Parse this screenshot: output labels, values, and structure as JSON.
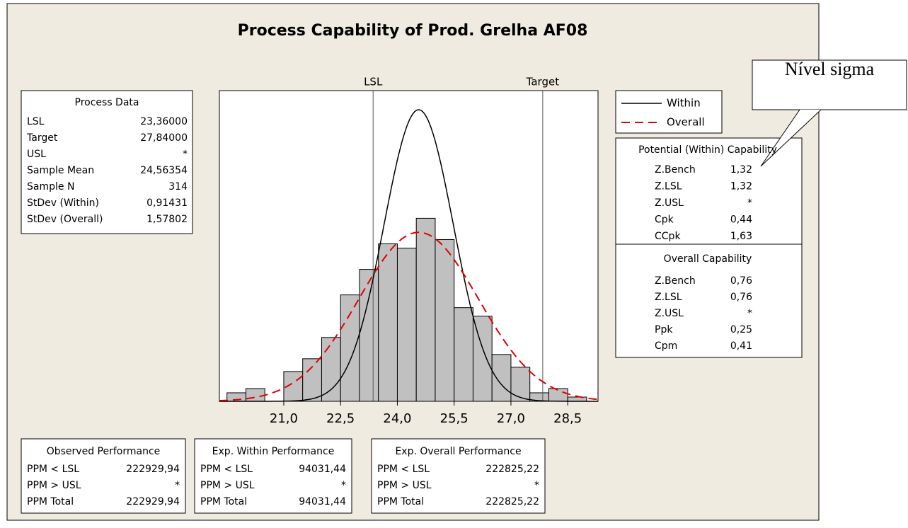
{
  "chart_data": {
    "type": "histogram",
    "title": "Process Capability of Prod. Grelha AF08",
    "bins": [
      19.5,
      20.0,
      20.5,
      21.0,
      21.5,
      22.0,
      22.5,
      23.0,
      23.5,
      24.0,
      24.5,
      25.0,
      25.5,
      26.0,
      26.5,
      27.0,
      27.5,
      28.0,
      28.5,
      29.0
    ],
    "counts": [
      2,
      3,
      0,
      7,
      10,
      15,
      25,
      31,
      37,
      36,
      43,
      38,
      22,
      20,
      11,
      8,
      2,
      3,
      1
    ],
    "color": "#c0c0c0",
    "xlim": [
      19.3,
      29.3
    ],
    "ylim": [
      0,
      73
    ],
    "xticks": [
      {
        "value": 21,
        "label": "21,0"
      },
      {
        "value": 22.5,
        "label": "22,5"
      },
      {
        "value": 24,
        "label": "24,0"
      },
      {
        "value": 25.5,
        "label": "25,5"
      },
      {
        "value": 27,
        "label": "27,0"
      },
      {
        "value": 28.5,
        "label": "28,5"
      }
    ],
    "reference_lines": [
      {
        "name": "LSL",
        "value": 23.36
      },
      {
        "name": "Target",
        "value": 27.84
      }
    ],
    "curves": [
      {
        "name": "Within",
        "color": "#000000",
        "dashed": false,
        "mean": 24.56354,
        "sd": 0.91431
      },
      {
        "name": "Overall",
        "color": "#e00000",
        "dashed": true,
        "mean": 24.56354,
        "sd": 1.57802
      }
    ]
  },
  "process_data": {
    "title": "Process Data",
    "rows": [
      [
        "LSL",
        "23,36000"
      ],
      [
        "Target",
        "27,84000"
      ],
      [
        "USL",
        "*"
      ],
      [
        "Sample Mean",
        "24,56354"
      ],
      [
        "Sample N",
        "314"
      ],
      [
        "StDev (Within)",
        "0,91431"
      ],
      [
        "StDev (Overall)",
        "1,57802"
      ]
    ]
  },
  "potential": {
    "title": "Potential (Within) Capability",
    "rows": [
      [
        "Z.Bench",
        "1,32"
      ],
      [
        "Z.LSL",
        "1,32"
      ],
      [
        "Z.USL",
        "*"
      ],
      [
        "Cpk",
        "0,44"
      ],
      [
        "CCpk",
        "1,63"
      ]
    ]
  },
  "overall": {
    "title": "Overall Capability",
    "rows": [
      [
        "Z.Bench",
        "0,76"
      ],
      [
        "Z.LSL",
        "0,76"
      ],
      [
        "Z.USL",
        "*"
      ],
      [
        "Ppk",
        "0,25"
      ],
      [
        "Cpm",
        "0,41"
      ]
    ]
  },
  "performance": [
    {
      "title": "Observed Performance",
      "rows": [
        [
          "PPM < LSL",
          "222929,94"
        ],
        [
          "PPM > USL",
          "*"
        ],
        [
          "PPM Total",
          "222929,94"
        ]
      ]
    },
    {
      "title": "Exp. Within Performance",
      "rows": [
        [
          "PPM < LSL",
          "94031,44"
        ],
        [
          "PPM > USL",
          "*"
        ],
        [
          "PPM Total",
          "94031,44"
        ]
      ]
    },
    {
      "title": "Exp. Overall Performance",
      "rows": [
        [
          "PPM < LSL",
          "222825,22"
        ],
        [
          "PPM > USL",
          "*"
        ],
        [
          "PPM Total",
          "222825,22"
        ]
      ]
    }
  ],
  "callout": "Nível sigma"
}
